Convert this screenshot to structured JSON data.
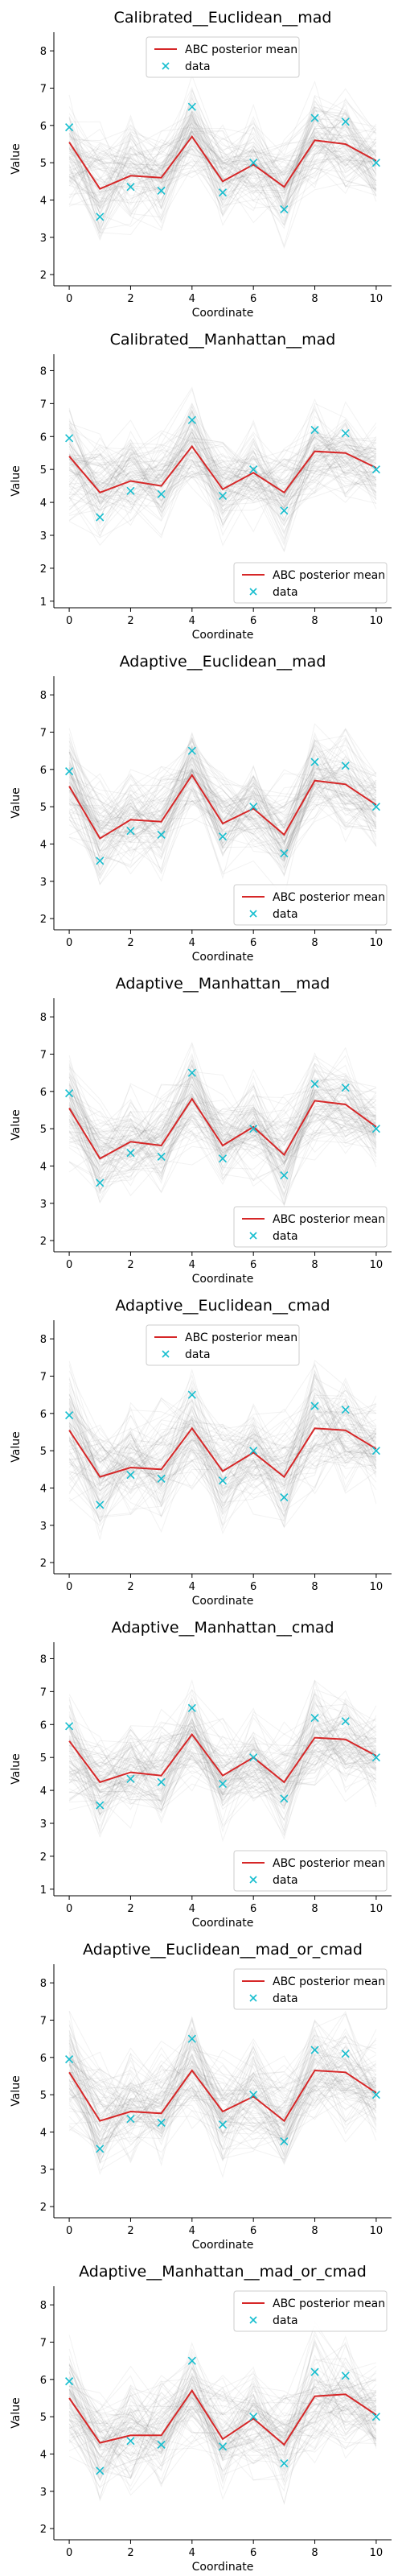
{
  "chart_data": [
    {
      "type": "line",
      "title": "Calibrated__Euclidean__mad",
      "xlabel": "Coordinate",
      "ylabel": "Value",
      "xlim": [
        -0.5,
        10.5
      ],
      "ylim": [
        1.7,
        8.5
      ],
      "xticks": [
        "0",
        "2",
        "4",
        "6",
        "8",
        "10"
      ],
      "yticks": [
        "2",
        "3",
        "4",
        "5",
        "6",
        "7",
        "8"
      ],
      "legend_position": "top-center",
      "x": [
        0,
        1,
        2,
        3,
        4,
        5,
        6,
        7,
        8,
        9,
        10
      ],
      "series": [
        {
          "name": "ABC posterior mean",
          "style": "line",
          "values": [
            5.55,
            4.3,
            4.65,
            4.6,
            5.7,
            4.5,
            4.95,
            4.35,
            5.6,
            5.5,
            5.05
          ]
        },
        {
          "name": "data",
          "style": "marker",
          "values": [
            5.95,
            3.55,
            4.35,
            4.25,
            6.5,
            4.2,
            5.0,
            3.75,
            6.2,
            6.1,
            5.0
          ]
        }
      ],
      "band": {
        "upper": [
          7.6,
          6.6,
          6.8,
          6.6,
          7.6,
          6.5,
          6.9,
          6.5,
          7.6,
          7.4,
          6.6
        ],
        "lower": [
          3.2,
          2.1,
          2.8,
          2.7,
          3.9,
          2.6,
          3.1,
          2.3,
          3.7,
          3.6,
          3.4
        ]
      },
      "colors": {
        "mean": "#d62728",
        "data": "#17becf",
        "traces": "#6f6f6f"
      }
    },
    {
      "type": "line",
      "title": "Calibrated__Manhattan__mad",
      "xlabel": "Coordinate",
      "ylabel": "Value",
      "xlim": [
        -0.5,
        10.5
      ],
      "ylim": [
        0.8,
        8.5
      ],
      "xticks": [
        "0",
        "2",
        "4",
        "6",
        "8",
        "10"
      ],
      "yticks": [
        "1",
        "2",
        "3",
        "4",
        "5",
        "6",
        "7",
        "8"
      ],
      "legend_position": "bottom-right",
      "x": [
        0,
        1,
        2,
        3,
        4,
        5,
        6,
        7,
        8,
        9,
        10
      ],
      "series": [
        {
          "name": "ABC posterior mean",
          "style": "line",
          "values": [
            5.4,
            4.3,
            4.65,
            4.5,
            5.7,
            4.4,
            4.9,
            4.3,
            5.55,
            5.5,
            5.05
          ]
        },
        {
          "name": "data",
          "style": "marker",
          "values": [
            5.95,
            3.55,
            4.35,
            4.25,
            6.5,
            4.2,
            5.0,
            3.75,
            6.2,
            6.1,
            5.0
          ]
        }
      ],
      "band": {
        "upper": [
          7.8,
          6.5,
          6.9,
          6.7,
          7.8,
          6.6,
          6.9,
          6.4,
          7.7,
          7.5,
          6.7
        ],
        "lower": [
          2.9,
          2.2,
          2.6,
          2.5,
          3.6,
          2.3,
          2.9,
          2.2,
          3.4,
          3.4,
          3.3
        ]
      },
      "colors": {
        "mean": "#d62728",
        "data": "#17becf",
        "traces": "#6f6f6f"
      }
    },
    {
      "type": "line",
      "title": "Adaptive__Euclidean__mad",
      "xlabel": "Coordinate",
      "ylabel": "Value",
      "xlim": [
        -0.5,
        10.5
      ],
      "ylim": [
        1.7,
        8.5
      ],
      "xticks": [
        "0",
        "2",
        "4",
        "6",
        "8",
        "10"
      ],
      "yticks": [
        "2",
        "3",
        "4",
        "5",
        "6",
        "7",
        "8"
      ],
      "legend_position": "bottom-right",
      "x": [
        0,
        1,
        2,
        3,
        4,
        5,
        6,
        7,
        8,
        9,
        10
      ],
      "series": [
        {
          "name": "ABC posterior mean",
          "style": "line",
          "values": [
            5.55,
            4.15,
            4.65,
            4.6,
            5.85,
            4.55,
            4.95,
            4.25,
            5.7,
            5.6,
            5.05
          ]
        },
        {
          "name": "data",
          "style": "marker",
          "values": [
            5.95,
            3.55,
            4.35,
            4.25,
            6.5,
            4.2,
            5.0,
            3.75,
            6.2,
            6.1,
            5.0
          ]
        }
      ],
      "band": {
        "upper": [
          7.6,
          6.3,
          6.6,
          6.6,
          7.8,
          6.5,
          6.9,
          6.3,
          7.7,
          7.5,
          6.6
        ],
        "lower": [
          3.5,
          2.2,
          2.8,
          2.7,
          4.0,
          2.7,
          3.1,
          2.2,
          3.8,
          3.7,
          3.6
        ]
      },
      "colors": {
        "mean": "#d62728",
        "data": "#17becf",
        "traces": "#6f6f6f"
      }
    },
    {
      "type": "line",
      "title": "Adaptive__Manhattan__mad",
      "xlabel": "Coordinate",
      "ylabel": "Value",
      "xlim": [
        -0.5,
        10.5
      ],
      "ylim": [
        1.7,
        8.5
      ],
      "xticks": [
        "0",
        "2",
        "4",
        "6",
        "8",
        "10"
      ],
      "yticks": [
        "2",
        "3",
        "4",
        "5",
        "6",
        "7",
        "8"
      ],
      "legend_position": "bottom-right",
      "x": [
        0,
        1,
        2,
        3,
        4,
        5,
        6,
        7,
        8,
        9,
        10
      ],
      "series": [
        {
          "name": "ABC posterior mean",
          "style": "line",
          "values": [
            5.55,
            4.2,
            4.65,
            4.55,
            5.8,
            4.55,
            5.05,
            4.3,
            5.75,
            5.65,
            5.05
          ]
        },
        {
          "name": "data",
          "style": "marker",
          "values": [
            5.95,
            3.55,
            4.35,
            4.25,
            6.5,
            4.2,
            5.0,
            3.75,
            6.2,
            6.1,
            5.0
          ]
        }
      ],
      "band": {
        "upper": [
          7.5,
          6.2,
          6.6,
          6.5,
          7.8,
          6.5,
          6.9,
          6.3,
          7.6,
          7.5,
          6.5
        ],
        "lower": [
          3.6,
          2.3,
          2.9,
          2.8,
          3.9,
          2.7,
          3.2,
          2.3,
          3.9,
          3.8,
          3.7
        ]
      },
      "colors": {
        "mean": "#d62728",
        "data": "#17becf",
        "traces": "#6f6f6f"
      }
    },
    {
      "type": "line",
      "title": "Adaptive__Euclidean__cmad",
      "xlabel": "Coordinate",
      "ylabel": "Value",
      "xlim": [
        -0.5,
        10.5
      ],
      "ylim": [
        1.7,
        8.5
      ],
      "xticks": [
        "0",
        "2",
        "4",
        "6",
        "8",
        "10"
      ],
      "yticks": [
        "2",
        "3",
        "4",
        "5",
        "6",
        "7",
        "8"
      ],
      "legend_position": "top-center",
      "x": [
        0,
        1,
        2,
        3,
        4,
        5,
        6,
        7,
        8,
        9,
        10
      ],
      "series": [
        {
          "name": "ABC posterior mean",
          "style": "line",
          "values": [
            5.55,
            4.3,
            4.55,
            4.5,
            5.6,
            4.45,
            4.95,
            4.3,
            5.6,
            5.55,
            5.05
          ]
        },
        {
          "name": "data",
          "style": "marker",
          "values": [
            5.95,
            3.55,
            4.35,
            4.25,
            6.5,
            4.2,
            5.0,
            3.75,
            6.2,
            6.1,
            5.0
          ]
        }
      ],
      "band": {
        "upper": [
          7.9,
          6.6,
          6.8,
          6.7,
          7.8,
          6.6,
          7.0,
          6.5,
          7.8,
          7.6,
          6.8
        ],
        "lower": [
          3.2,
          2.1,
          2.5,
          2.4,
          3.5,
          2.4,
          2.9,
          2.2,
          3.4,
          3.4,
          3.3
        ]
      },
      "colors": {
        "mean": "#d62728",
        "data": "#17becf",
        "traces": "#6f6f6f"
      }
    },
    {
      "type": "line",
      "title": "Adaptive__Manhattan__cmad",
      "xlabel": "Coordinate",
      "ylabel": "Value",
      "xlim": [
        -0.5,
        10.5
      ],
      "ylim": [
        0.8,
        8.5
      ],
      "xticks": [
        "0",
        "2",
        "4",
        "6",
        "8",
        "10"
      ],
      "yticks": [
        "1",
        "2",
        "3",
        "4",
        "5",
        "6",
        "7",
        "8"
      ],
      "legend_position": "bottom-right",
      "x": [
        0,
        1,
        2,
        3,
        4,
        5,
        6,
        7,
        8,
        9,
        10
      ],
      "series": [
        {
          "name": "ABC posterior mean",
          "style": "line",
          "values": [
            5.5,
            4.25,
            4.55,
            4.45,
            5.7,
            4.45,
            5.0,
            4.25,
            5.6,
            5.55,
            5.05
          ]
        },
        {
          "name": "data",
          "style": "marker",
          "values": [
            5.95,
            3.55,
            4.35,
            4.25,
            6.5,
            4.2,
            5.0,
            3.75,
            6.2,
            6.1,
            5.0
          ]
        }
      ],
      "band": {
        "upper": [
          7.8,
          6.5,
          6.8,
          6.7,
          7.9,
          6.6,
          7.0,
          6.5,
          7.9,
          7.6,
          6.8
        ],
        "lower": [
          3.1,
          2.0,
          2.4,
          2.3,
          3.4,
          2.3,
          2.8,
          2.1,
          3.3,
          3.3,
          3.2
        ]
      },
      "colors": {
        "mean": "#d62728",
        "data": "#17becf",
        "traces": "#6f6f6f"
      }
    },
    {
      "type": "line",
      "title": "Adaptive__Euclidean__mad_or_cmad",
      "xlabel": "Coordinate",
      "ylabel": "Value",
      "xlim": [
        -0.5,
        10.5
      ],
      "ylim": [
        1.7,
        8.5
      ],
      "xticks": [
        "0",
        "2",
        "4",
        "6",
        "8",
        "10"
      ],
      "yticks": [
        "2",
        "3",
        "4",
        "5",
        "6",
        "7",
        "8"
      ],
      "legend_position": "top-right",
      "x": [
        0,
        1,
        2,
        3,
        4,
        5,
        6,
        7,
        8,
        9,
        10
      ],
      "series": [
        {
          "name": "ABC posterior mean",
          "style": "line",
          "values": [
            5.6,
            4.3,
            4.55,
            4.5,
            5.65,
            4.55,
            4.95,
            4.3,
            5.65,
            5.6,
            5.05
          ]
        },
        {
          "name": "data",
          "style": "marker",
          "values": [
            5.95,
            3.55,
            4.35,
            4.25,
            6.5,
            4.2,
            5.0,
            3.75,
            6.2,
            6.1,
            5.0
          ]
        }
      ],
      "band": {
        "upper": [
          7.9,
          6.5,
          6.7,
          6.7,
          7.8,
          6.6,
          7.0,
          6.5,
          7.8,
          7.6,
          6.8
        ],
        "lower": [
          3.3,
          2.2,
          2.6,
          2.5,
          3.6,
          2.5,
          2.9,
          2.2,
          3.5,
          3.5,
          3.4
        ]
      },
      "colors": {
        "mean": "#d62728",
        "data": "#17becf",
        "traces": "#6f6f6f"
      }
    },
    {
      "type": "line",
      "title": "Adaptive__Manhattan__mad_or_cmad",
      "xlabel": "Coordinate",
      "ylabel": "Value",
      "xlim": [
        -0.5,
        10.5
      ],
      "ylim": [
        1.7,
        8.5
      ],
      "xticks": [
        "0",
        "2",
        "4",
        "6",
        "8",
        "10"
      ],
      "yticks": [
        "2",
        "3",
        "4",
        "5",
        "6",
        "7",
        "8"
      ],
      "legend_position": "top-right",
      "x": [
        0,
        1,
        2,
        3,
        4,
        5,
        6,
        7,
        8,
        9,
        10
      ],
      "series": [
        {
          "name": "ABC posterior mean",
          "style": "line",
          "values": [
            5.5,
            4.3,
            4.5,
            4.5,
            5.7,
            4.4,
            4.95,
            4.25,
            5.55,
            5.6,
            5.05
          ]
        },
        {
          "name": "data",
          "style": "marker",
          "values": [
            5.95,
            3.55,
            4.35,
            4.25,
            6.5,
            4.2,
            5.0,
            3.75,
            6.2,
            6.1,
            5.0
          ]
        }
      ],
      "band": {
        "upper": [
          7.7,
          6.4,
          6.6,
          6.6,
          7.8,
          6.5,
          6.9,
          6.4,
          7.7,
          7.6,
          6.7
        ],
        "lower": [
          3.3,
          2.2,
          2.5,
          2.5,
          3.6,
          2.4,
          2.9,
          2.2,
          3.4,
          3.5,
          3.4
        ]
      },
      "colors": {
        "mean": "#d62728",
        "data": "#17becf",
        "traces": "#6f6f6f"
      }
    }
  ]
}
